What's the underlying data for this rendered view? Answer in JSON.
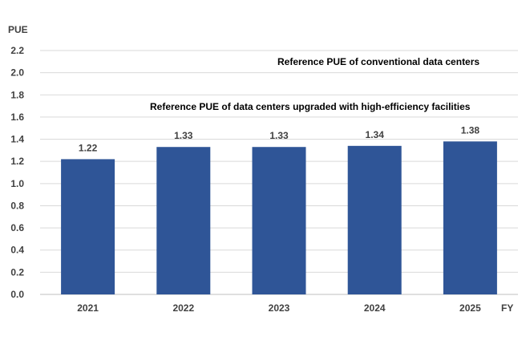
{
  "chart_data": {
    "type": "bar",
    "ylabel": "PUE",
    "xlabel": "FY",
    "categories": [
      "2021",
      "2022",
      "2023",
      "2024",
      "2025"
    ],
    "values": [
      1.22,
      1.33,
      1.33,
      1.34,
      1.38
    ],
    "data_labels": [
      "1.22",
      "1.33",
      "1.33",
      "1.34",
      "1.38"
    ],
    "ylim": [
      0,
      2.2
    ],
    "yticks": [
      "0.0",
      "0.2",
      "0.4",
      "0.6",
      "0.8",
      "1.0",
      "1.2",
      "1.4",
      "1.6",
      "1.8",
      "2.0",
      "2.2"
    ],
    "grid": true,
    "annotations": [
      "Reference PUE of conventional data centers",
      "Reference PUE of data centers upgraded with high-efficiency facilities"
    ],
    "colors": {
      "bar": "#2f5597",
      "grid": "#d9d9d9",
      "text": "#404040"
    }
  }
}
